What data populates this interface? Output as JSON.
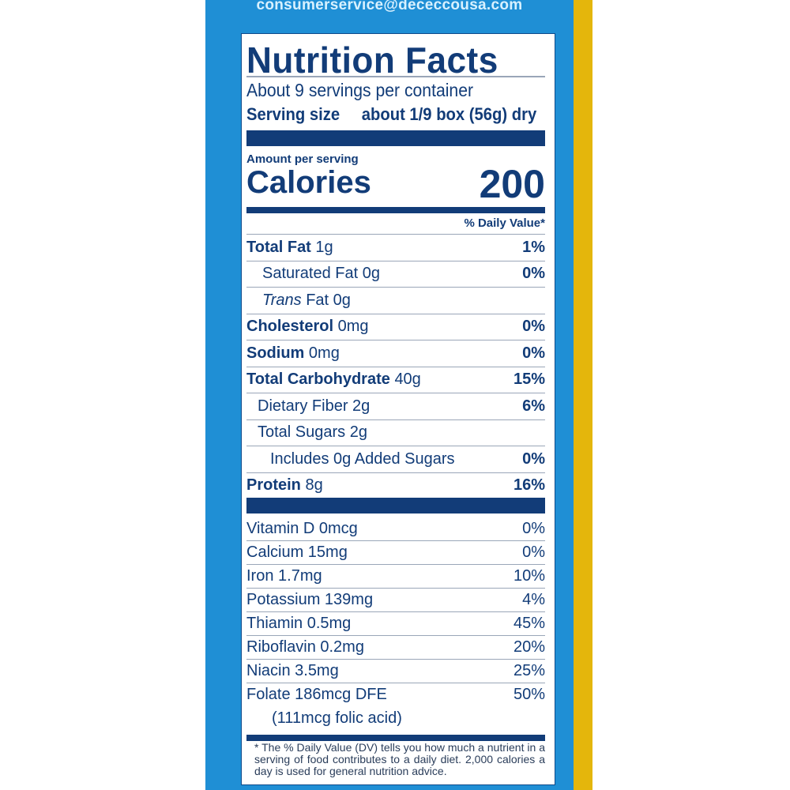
{
  "contact_email": "consumerservice@dececcousa.com",
  "label": {
    "title": "Nutrition Facts",
    "servings": "About 9 servings per container",
    "serving_size_label": "Serving size",
    "serving_size_value": "about 1/9 box (56g) dry",
    "amount_per_serving": "Amount per serving",
    "calories_label": "Calories",
    "calories_value": "200",
    "dv_header": "% Daily Value*",
    "nutrients": [
      {
        "name": "Total Fat",
        "amount": "1g",
        "dv": "1%"
      },
      {
        "name": "Saturated Fat",
        "amount": "0g",
        "dv": "0%"
      },
      {
        "name": "Trans",
        "amount": "Fat 0g",
        "dv": ""
      },
      {
        "name": "Cholesterol",
        "amount": "0mg",
        "dv": "0%"
      },
      {
        "name": "Sodium",
        "amount": "0mg",
        "dv": "0%"
      },
      {
        "name": "Total Carbohydrate",
        "amount": "40g",
        "dv": "15%"
      },
      {
        "name": "Dietary Fiber",
        "amount": "2g",
        "dv": "6%"
      },
      {
        "name": "Total Sugars",
        "amount": "2g",
        "dv": ""
      },
      {
        "name": "Includes 0g Added Sugars",
        "amount": "",
        "dv": "0%"
      },
      {
        "name": "Protein",
        "amount": "8g",
        "dv": "16%"
      }
    ],
    "vitamins": [
      {
        "text": "Vitamin D 0mcg",
        "dv": "0%"
      },
      {
        "text": "Calcium 15mg",
        "dv": "0%"
      },
      {
        "text": "Iron 1.7mg",
        "dv": "10%"
      },
      {
        "text": "Potassium 139mg",
        "dv": "4%"
      },
      {
        "text": "Thiamin 0.5mg",
        "dv": "45%"
      },
      {
        "text": "Riboflavin 0.2mg",
        "dv": "20%"
      },
      {
        "text": "Niacin 3.5mg",
        "dv": "25%"
      },
      {
        "text": "Folate 186mcg DFE",
        "dv": "50%"
      },
      {
        "text": "(111mcg folic acid)",
        "dv": ""
      }
    ],
    "footnote": "* The % Daily Value (DV) tells you how much a nutrient in a serving of food contributes to a daily diet. 2,000 calories a day is used for general nutrition advice."
  },
  "colors": {
    "panel": "#1f8fd5",
    "stripe": "#e4b60c",
    "text": "#123c78"
  }
}
